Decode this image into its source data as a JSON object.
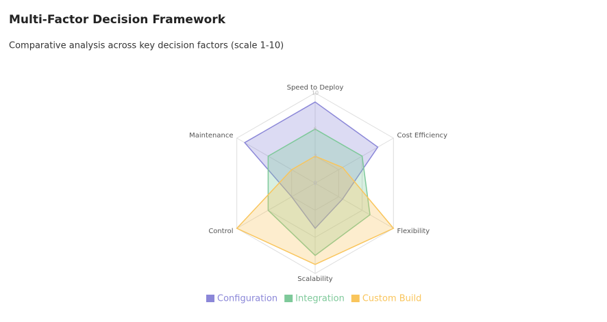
{
  "chart_data": {
    "type": "radar",
    "title": "Multi-Factor Decision Framework",
    "subtitle": "Comparative analysis across key decision factors (scale 1-10)",
    "categories": [
      "Speed to Deploy",
      "Cost Efficiency",
      "Flexibility",
      "Scalability",
      "Control",
      "Maintenance"
    ],
    "series": [
      {
        "name": "Configuration",
        "color": "#8b87d8",
        "values": [
          9,
          8,
          3.5,
          5,
          3,
          9
        ]
      },
      {
        "name": "Integration",
        "color": "#7ec99a",
        "values": [
          6,
          6,
          7,
          8,
          6,
          6
        ]
      },
      {
        "name": "Custom Build",
        "color": "#f9c55c",
        "values": [
          3,
          3.5,
          10,
          9,
          10,
          3
        ]
      }
    ],
    "ylim": [
      0,
      10
    ],
    "yticks": [
      0,
      3,
      6,
      10
    ],
    "grid": true,
    "legend": "bottom"
  }
}
